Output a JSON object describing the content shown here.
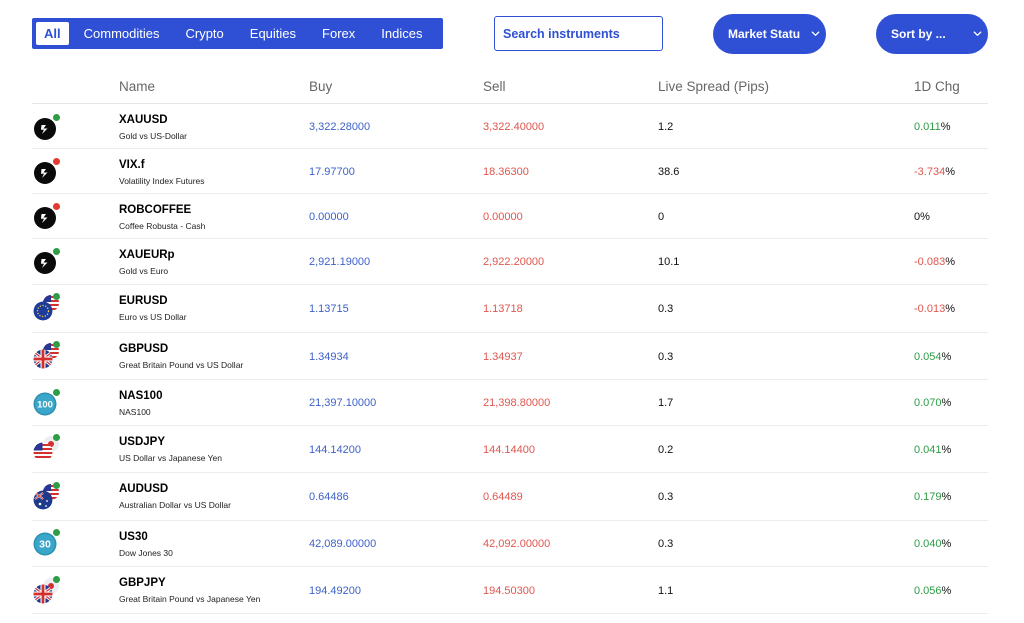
{
  "filters": {
    "tabs": [
      {
        "label": "All",
        "active": true
      },
      {
        "label": "Commodities",
        "active": false
      },
      {
        "label": "Crypto",
        "active": false
      },
      {
        "label": "Equities",
        "active": false
      },
      {
        "label": "Forex",
        "active": false
      },
      {
        "label": "Indices",
        "active": false
      }
    ],
    "search_placeholder": "Search instruments",
    "market_status_label": "Market Statu",
    "sort_label": "Sort by ..."
  },
  "table": {
    "headers": {
      "name": "Name",
      "buy": "Buy",
      "sell": "Sell",
      "spread": "Live Spread (Pips)",
      "change": "1D Chg"
    },
    "rows": [
      {
        "symbol": "XAUUSD",
        "description": "Gold vs US-Dollar",
        "buy": "3,322.28000",
        "sell": "3,322.40000",
        "spread": "1.2",
        "change": "0.011",
        "change_suffix": "%",
        "direction": "up",
        "status": "green",
        "icon": "commodity-logo-icon"
      },
      {
        "symbol": "VIX.f",
        "description": "Volatility Index Futures",
        "buy": "17.97700",
        "sell": "18.36300",
        "spread": "38.6",
        "change": "-3.734",
        "change_suffix": "%",
        "direction": "down",
        "status": "red",
        "icon": "commodity-logo-icon"
      },
      {
        "symbol": "ROBCOFFEE",
        "description": "Coffee Robusta - Cash",
        "buy": "0.00000",
        "sell": "0.00000",
        "spread": "0",
        "change": "0%",
        "change_suffix": "",
        "direction": "flat",
        "status": "red",
        "icon": "commodity-logo-icon"
      },
      {
        "symbol": "XAUEURp",
        "description": "Gold vs Euro",
        "buy": "2,921.19000",
        "sell": "2,922.20000",
        "spread": "10.1",
        "change": "-0.083",
        "change_suffix": "%",
        "direction": "down",
        "status": "green",
        "icon": "commodity-logo-icon"
      },
      {
        "symbol": "EURUSD",
        "description": "Euro vs US Dollar",
        "buy": "1.13715",
        "sell": "1.13718",
        "spread": "0.3",
        "change": "-0.013",
        "change_suffix": "%",
        "direction": "down",
        "status": "green",
        "icon": "eu-us-flags-icon"
      },
      {
        "symbol": "GBPUSD",
        "description": "Great Britain Pound vs US Dollar",
        "buy": "1.34934",
        "sell": "1.34937",
        "spread": "0.3",
        "change": "0.054",
        "change_suffix": "%",
        "direction": "up",
        "status": "green",
        "icon": "uk-us-flags-icon"
      },
      {
        "symbol": "NAS100",
        "description": "NAS100",
        "buy": "21,397.10000",
        "sell": "21,398.80000",
        "spread": "1.7",
        "change": "0.070",
        "change_suffix": "%",
        "direction": "up",
        "status": "green",
        "icon": "index-badge-icon",
        "badge": "100"
      },
      {
        "symbol": "USDJPY",
        "description": "US Dollar vs Japanese Yen",
        "buy": "144.14200",
        "sell": "144.14400",
        "spread": "0.2",
        "change": "0.041",
        "change_suffix": "%",
        "direction": "up",
        "status": "green",
        "icon": "us-jp-flags-icon"
      },
      {
        "symbol": "AUDUSD",
        "description": "Australian Dollar vs US Dollar",
        "buy": "0.64486",
        "sell": "0.64489",
        "spread": "0.3",
        "change": "0.179",
        "change_suffix": "%",
        "direction": "up",
        "status": "green",
        "icon": "au-us-flags-icon"
      },
      {
        "symbol": "US30",
        "description": "Dow Jones 30",
        "buy": "42,089.00000",
        "sell": "42,092.00000",
        "spread": "0.3",
        "change": "0.040",
        "change_suffix": "%",
        "direction": "up",
        "status": "green",
        "icon": "index-badge-icon",
        "badge": "30"
      },
      {
        "symbol": "GBPJPY",
        "description": "Great Britain Pound vs Japanese Yen",
        "buy": "194.49200",
        "sell": "194.50300",
        "spread": "1.1",
        "change": "0.056",
        "change_suffix": "%",
        "direction": "up",
        "status": "green",
        "icon": "uk-jp-flags-icon"
      }
    ]
  },
  "colors": {
    "accent": "#2f50d4",
    "buy": "#3e61c8",
    "sell": "#e0564e",
    "positive": "#2e9d46",
    "negative": "#e0564e",
    "status_open": "#2e9d46",
    "status_closed": "#e53935"
  }
}
